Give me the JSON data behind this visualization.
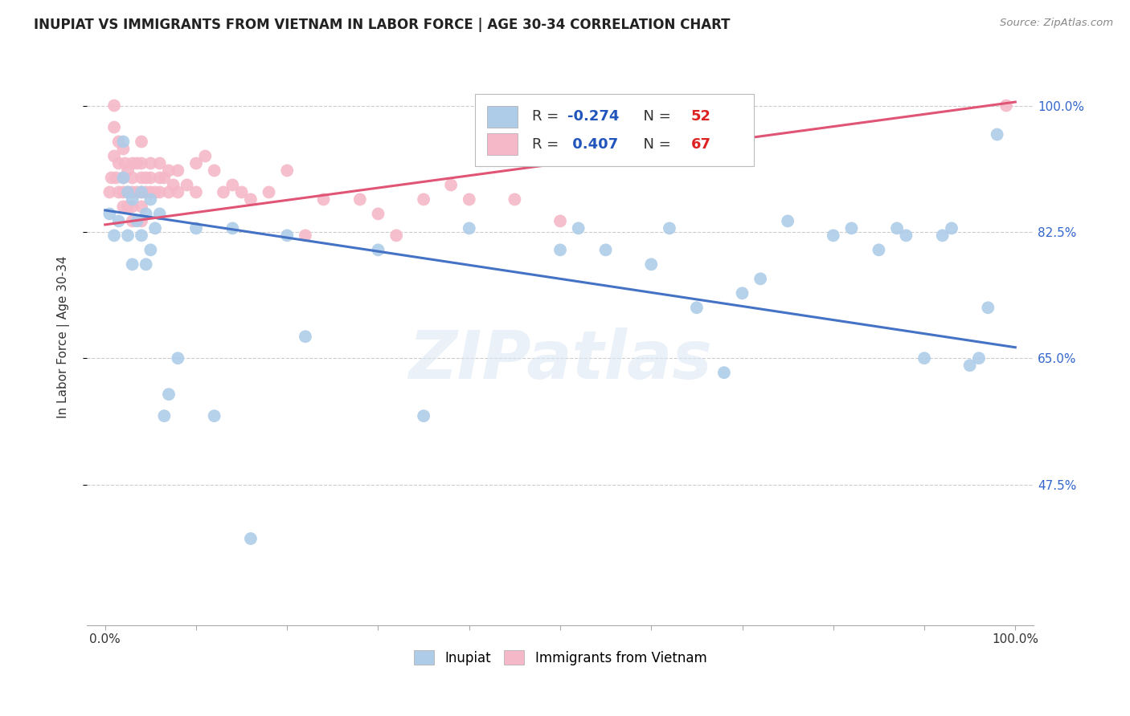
{
  "title": "INUPIAT VS IMMIGRANTS FROM VIETNAM IN LABOR FORCE | AGE 30-34 CORRELATION CHART",
  "source": "Source: ZipAtlas.com",
  "ylabel": "In Labor Force | Age 30-34",
  "watermark": "ZIPatlas",
  "legend_blue_label": "Inupiat",
  "legend_pink_label": "Immigrants from Vietnam",
  "blue_R": -0.274,
  "blue_N": 52,
  "pink_R": 0.407,
  "pink_N": 67,
  "blue_color": "#aecce8",
  "pink_color": "#f5b8c8",
  "blue_line_color": "#4472c4",
  "pink_line_color": "#e05575",
  "xlim": [
    -0.02,
    1.02
  ],
  "ylim": [
    0.28,
    1.08
  ],
  "xticks": [
    0.0,
    0.1,
    0.2,
    0.3,
    0.4,
    0.5,
    0.6,
    0.7,
    0.8,
    0.9,
    1.0
  ],
  "xticklabels": [
    "0.0%",
    "",
    "",
    "",
    "",
    "",
    "",
    "",
    "",
    "",
    "100.0%"
  ],
  "ytick_positions": [
    0.475,
    0.65,
    0.825,
    1.0
  ],
  "yticklabels": [
    "47.5%",
    "65.0%",
    "82.5%",
    "100.0%"
  ],
  "blue_x": [
    0.005,
    0.01,
    0.015,
    0.02,
    0.02,
    0.025,
    0.025,
    0.03,
    0.03,
    0.035,
    0.04,
    0.04,
    0.045,
    0.045,
    0.05,
    0.05,
    0.055,
    0.06,
    0.065,
    0.07,
    0.08,
    0.1,
    0.12,
    0.14,
    0.16,
    0.2,
    0.22,
    0.3,
    0.35,
    0.4,
    0.5,
    0.52,
    0.55,
    0.6,
    0.62,
    0.65,
    0.68,
    0.7,
    0.72,
    0.75,
    0.8,
    0.82,
    0.85,
    0.87,
    0.88,
    0.9,
    0.92,
    0.93,
    0.95,
    0.96,
    0.97,
    0.98
  ],
  "blue_y": [
    0.85,
    0.82,
    0.84,
    0.9,
    0.95,
    0.88,
    0.82,
    0.87,
    0.78,
    0.84,
    0.88,
    0.82,
    0.85,
    0.78,
    0.87,
    0.8,
    0.83,
    0.85,
    0.57,
    0.6,
    0.65,
    0.83,
    0.57,
    0.83,
    0.4,
    0.82,
    0.68,
    0.8,
    0.57,
    0.83,
    0.8,
    0.83,
    0.8,
    0.78,
    0.83,
    0.72,
    0.63,
    0.74,
    0.76,
    0.84,
    0.82,
    0.83,
    0.8,
    0.83,
    0.82,
    0.65,
    0.82,
    0.83,
    0.64,
    0.65,
    0.72,
    0.96
  ],
  "pink_x": [
    0.005,
    0.007,
    0.01,
    0.01,
    0.01,
    0.012,
    0.015,
    0.015,
    0.015,
    0.02,
    0.02,
    0.02,
    0.02,
    0.022,
    0.025,
    0.025,
    0.025,
    0.03,
    0.03,
    0.03,
    0.03,
    0.03,
    0.035,
    0.035,
    0.04,
    0.04,
    0.04,
    0.04,
    0.04,
    0.04,
    0.045,
    0.045,
    0.05,
    0.05,
    0.05,
    0.055,
    0.06,
    0.06,
    0.06,
    0.065,
    0.07,
    0.07,
    0.075,
    0.08,
    0.08,
    0.09,
    0.1,
    0.1,
    0.11,
    0.12,
    0.13,
    0.14,
    0.15,
    0.16,
    0.18,
    0.2,
    0.22,
    0.24,
    0.28,
    0.3,
    0.32,
    0.35,
    0.38,
    0.4,
    0.45,
    0.5,
    0.99
  ],
  "pink_y": [
    0.88,
    0.9,
    0.93,
    0.97,
    1.0,
    0.9,
    0.95,
    0.92,
    0.88,
    0.94,
    0.9,
    0.88,
    0.86,
    0.92,
    0.91,
    0.88,
    0.86,
    0.92,
    0.9,
    0.88,
    0.86,
    0.84,
    0.92,
    0.88,
    0.95,
    0.92,
    0.9,
    0.88,
    0.86,
    0.84,
    0.9,
    0.88,
    0.92,
    0.9,
    0.88,
    0.88,
    0.92,
    0.9,
    0.88,
    0.9,
    0.91,
    0.88,
    0.89,
    0.91,
    0.88,
    0.89,
    0.92,
    0.88,
    0.93,
    0.91,
    0.88,
    0.89,
    0.88,
    0.87,
    0.88,
    0.91,
    0.82,
    0.87,
    0.87,
    0.85,
    0.82,
    0.87,
    0.89,
    0.87,
    0.87,
    0.84,
    1.0
  ]
}
